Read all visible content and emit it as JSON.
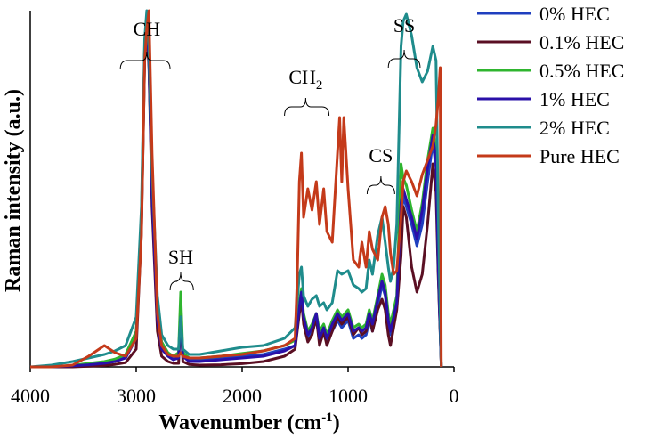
{
  "chart_data": {
    "type": "line",
    "title": "",
    "xlabel": "Wavenumber (cm",
    "xlabel_sup": "-1",
    "xlabel_end": ")",
    "ylabel": "Raman intensity (a.u.)",
    "xlim": [
      4000,
      0
    ],
    "ylim": [
      0,
      100
    ],
    "x_ticks": [
      4000,
      3000,
      2000,
      1000,
      0
    ],
    "x_tick_labels": [
      "4000",
      "3000",
      "2000",
      "1000",
      "0"
    ],
    "legend_position": "right",
    "annotations": [
      {
        "text": "CH",
        "sub": "",
        "x": 2900,
        "brace_from": 3150,
        "brace_to": 2680
      },
      {
        "text": "SH",
        "sub": "",
        "x": 2580,
        "brace_from": 2680,
        "brace_to": 2460
      },
      {
        "text": "CH",
        "sub": "2",
        "x": 1400,
        "brace_from": 1600,
        "brace_to": 1180
      },
      {
        "text": "CS",
        "sub": "",
        "x": 690,
        "brace_from": 820,
        "brace_to": 560
      },
      {
        "text": "SS",
        "sub": "",
        "x": 470,
        "brace_from": 620,
        "brace_to": 320
      }
    ],
    "series": [
      {
        "name": "0% HEC",
        "color": "#1f3fbf",
        "x": [
          4000,
          3800,
          3600,
          3450,
          3300,
          3200,
          3100,
          3000,
          2950,
          2920,
          2900,
          2880,
          2850,
          2800,
          2760,
          2700,
          2650,
          2600,
          2580,
          2560,
          2500,
          2400,
          2200,
          2000,
          1800,
          1600,
          1500,
          1460,
          1440,
          1420,
          1380,
          1340,
          1300,
          1270,
          1230,
          1200,
          1150,
          1100,
          1060,
          1000,
          950,
          900,
          870,
          830,
          800,
          770,
          720,
          680,
          650,
          620,
          600,
          570,
          540,
          500,
          480,
          450,
          400,
          350,
          300,
          250,
          200,
          170,
          150,
          120
        ],
        "y": [
          0,
          0,
          0.3,
          0.8,
          1.2,
          1.8,
          3,
          9,
          40,
          88,
          96,
          85,
          50,
          15,
          6,
          3.5,
          2.5,
          3,
          15,
          3.5,
          2,
          2,
          2.3,
          3,
          3.5,
          5,
          6,
          16,
          20,
          13,
          8,
          10,
          13,
          8,
          9,
          7,
          10,
          13,
          11,
          13,
          8,
          9,
          8,
          9,
          13,
          10,
          17,
          23,
          20,
          12,
          9,
          13,
          17,
          40,
          48,
          45,
          40,
          34,
          40,
          52,
          63,
          56,
          28,
          0
        ]
      },
      {
        "name": "0.1% HEC",
        "color": "#5a0f23",
        "x": [
          4000,
          3800,
          3600,
          3450,
          3300,
          3200,
          3100,
          3000,
          2950,
          2920,
          2900,
          2880,
          2850,
          2800,
          2760,
          2700,
          2650,
          2600,
          2580,
          2560,
          2500,
          2400,
          2200,
          2000,
          1800,
          1600,
          1500,
          1460,
          1440,
          1420,
          1380,
          1340,
          1300,
          1270,
          1230,
          1200,
          1150,
          1100,
          1060,
          1000,
          950,
          900,
          870,
          830,
          800,
          770,
          720,
          680,
          650,
          620,
          600,
          570,
          540,
          500,
          480,
          450,
          400,
          350,
          300,
          250,
          200,
          170,
          150,
          120
        ],
        "y": [
          0,
          0,
          0,
          0.2,
          0.4,
          0.7,
          1.2,
          5,
          38,
          86,
          95,
          84,
          45,
          10,
          3,
          1.5,
          1,
          1,
          14,
          1.5,
          0.7,
          0.5,
          0.6,
          0.9,
          1.5,
          3,
          5,
          15,
          19,
          12,
          7,
          9,
          14,
          6,
          10,
          6,
          10,
          14,
          12,
          14,
          9,
          11,
          9,
          10,
          15,
          10,
          16,
          19,
          16,
          9,
          6,
          11,
          16,
          31,
          45,
          42,
          28,
          21,
          26,
          40,
          57,
          49,
          26,
          0
        ]
      },
      {
        "name": "0.5% HEC",
        "color": "#2fb52f",
        "x": [
          4000,
          3800,
          3600,
          3450,
          3300,
          3200,
          3100,
          3000,
          2950,
          2920,
          2900,
          2880,
          2850,
          2800,
          2760,
          2700,
          2650,
          2600,
          2580,
          2560,
          2500,
          2400,
          2200,
          2000,
          1800,
          1600,
          1500,
          1460,
          1440,
          1420,
          1380,
          1340,
          1300,
          1270,
          1230,
          1200,
          1150,
          1100,
          1060,
          1000,
          950,
          900,
          870,
          830,
          800,
          770,
          720,
          680,
          650,
          620,
          600,
          570,
          540,
          500,
          480,
          450,
          400,
          350,
          300,
          250,
          200,
          170,
          150,
          120
        ],
        "y": [
          0,
          0,
          0.4,
          1,
          1.5,
          2.2,
          3.5,
          10,
          42,
          90,
          98,
          87,
          52,
          16,
          7,
          4,
          3,
          4,
          21,
          4,
          2.5,
          2.5,
          3,
          3.8,
          4.5,
          6,
          7.5,
          18,
          22,
          15,
          10,
          12,
          15,
          10,
          12,
          9,
          13,
          16,
          14,
          16,
          11,
          12,
          11,
          12,
          16,
          13,
          20,
          26,
          23,
          15,
          12,
          16,
          20,
          57,
          53,
          51,
          44,
          38,
          46,
          58,
          67,
          61,
          30,
          0
        ]
      },
      {
        "name": "1% HEC",
        "color": "#2a10a8",
        "x": [
          4000,
          3800,
          3600,
          3450,
          3300,
          3200,
          3100,
          3000,
          2950,
          2920,
          2900,
          2880,
          2850,
          2800,
          2760,
          2700,
          2650,
          2600,
          2580,
          2560,
          2500,
          2400,
          2200,
          2000,
          1800,
          1600,
          1500,
          1460,
          1440,
          1420,
          1380,
          1340,
          1300,
          1270,
          1230,
          1200,
          1150,
          1100,
          1060,
          1000,
          950,
          900,
          870,
          830,
          800,
          770,
          720,
          680,
          650,
          620,
          600,
          570,
          540,
          500,
          480,
          450,
          400,
          350,
          300,
          250,
          200,
          170,
          150,
          120
        ],
        "y": [
          0,
          0,
          0.3,
          0.6,
          1,
          1.5,
          2.5,
          8,
          40,
          89,
          97,
          86,
          48,
          13,
          5,
          3,
          2,
          2.5,
          14,
          3,
          1.5,
          1.5,
          2,
          2.5,
          3,
          4.5,
          6,
          17,
          21,
          14,
          9,
          11,
          15,
          8,
          11,
          8,
          12,
          15,
          13,
          15,
          10,
          11,
          10,
          11,
          15,
          12,
          19,
          24,
          21,
          13,
          10,
          14,
          18,
          46,
          50,
          47,
          42,
          36,
          44,
          56,
          65,
          58,
          29,
          0
        ]
      },
      {
        "name": "2% HEC",
        "color": "#1f8c8c",
        "x": [
          4000,
          3800,
          3600,
          3450,
          3300,
          3200,
          3100,
          3000,
          2950,
          2920,
          2900,
          2880,
          2850,
          2800,
          2760,
          2700,
          2650,
          2600,
          2580,
          2560,
          2500,
          2400,
          2200,
          2000,
          1800,
          1600,
          1500,
          1460,
          1440,
          1420,
          1380,
          1340,
          1300,
          1270,
          1230,
          1200,
          1150,
          1100,
          1060,
          1000,
          950,
          900,
          870,
          830,
          800,
          770,
          720,
          680,
          650,
          620,
          600,
          570,
          540,
          500,
          480,
          450,
          400,
          350,
          300,
          250,
          200,
          170,
          150,
          120
        ],
        "y": [
          0,
          0.5,
          1.5,
          2.5,
          3.5,
          4.5,
          6,
          14,
          45,
          92,
          100,
          90,
          55,
          20,
          9,
          6,
          5,
          5,
          14,
          5,
          3.5,
          3.5,
          4.5,
          5.5,
          6,
          8,
          11,
          26,
          28,
          20,
          17,
          19,
          20,
          17,
          18,
          16,
          18,
          27,
          26,
          27,
          23,
          22,
          21,
          22,
          30,
          26,
          37,
          42,
          35,
          28,
          24,
          28,
          40,
          90,
          97,
          99,
          93,
          84,
          80,
          83,
          90,
          86,
          45,
          0
        ]
      },
      {
        "name": "Pure HEC",
        "color": "#c43a1a",
        "x": [
          4000,
          3800,
          3600,
          3450,
          3300,
          3200,
          3100,
          3000,
          2950,
          2920,
          2900,
          2880,
          2850,
          2800,
          2760,
          2700,
          2650,
          2600,
          2580,
          2560,
          2500,
          2400,
          2200,
          2000,
          1800,
          1600,
          1500,
          1480,
          1460,
          1440,
          1420,
          1380,
          1340,
          1300,
          1270,
          1230,
          1200,
          1150,
          1100,
          1080,
          1060,
          1040,
          1000,
          950,
          900,
          870,
          830,
          800,
          770,
          720,
          680,
          650,
          620,
          600,
          570,
          540,
          500,
          480,
          450,
          400,
          350,
          300,
          250,
          200,
          170,
          150,
          130,
          120
        ],
        "y": [
          0,
          0,
          0.5,
          3,
          6,
          4,
          3,
          8,
          37,
          86,
          95,
          100,
          60,
          15,
          6,
          3.5,
          3,
          3,
          4,
          3,
          2.5,
          2.5,
          3,
          3.5,
          4.5,
          6,
          8,
          25,
          52,
          60,
          42,
          50,
          44,
          52,
          40,
          50,
          38,
          35,
          60,
          70,
          52,
          70,
          50,
          30,
          28,
          35,
          28,
          38,
          33,
          30,
          42,
          45,
          40,
          32,
          26,
          27,
          42,
          52,
          55,
          52,
          48,
          54,
          58,
          62,
          68,
          75,
          84,
          0
        ]
      }
    ]
  }
}
